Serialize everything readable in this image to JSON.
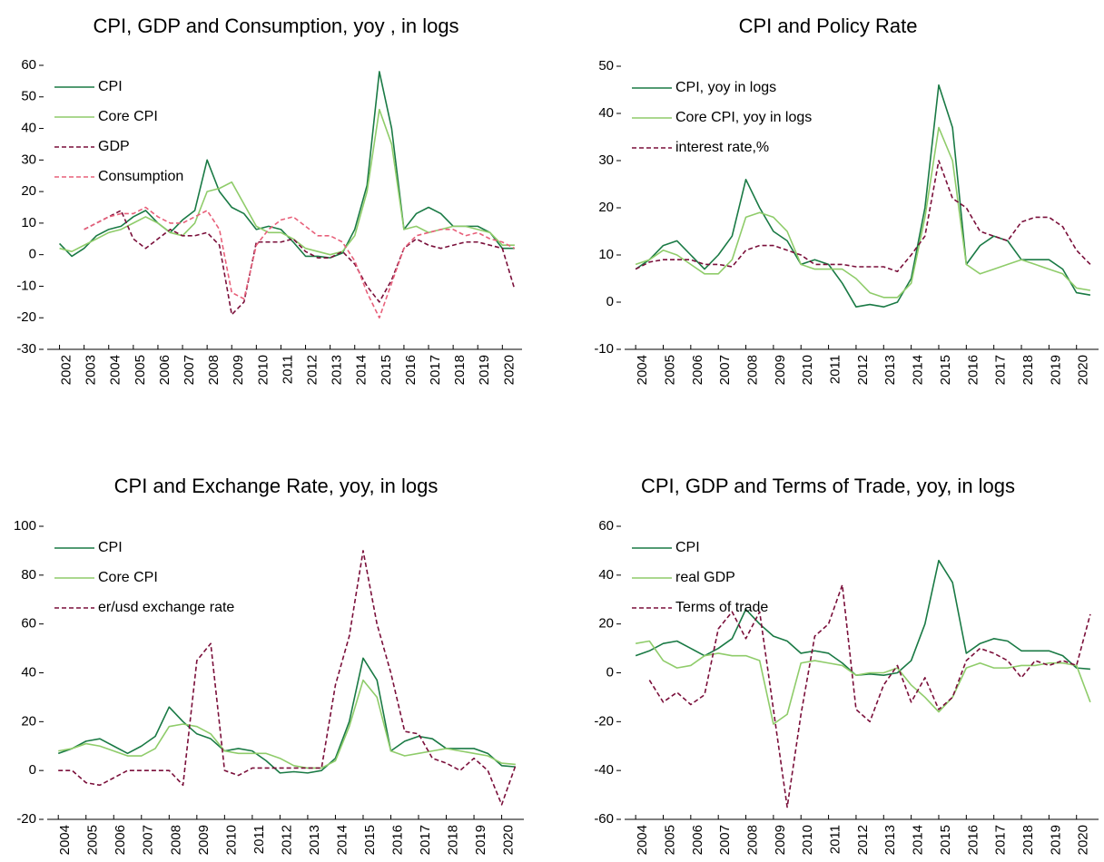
{
  "chart_data": [
    {
      "type": "line",
      "title": "CPI, GDP and Consumption, yoy , in logs",
      "x": [
        2002,
        2002.5,
        2003,
        2003.5,
        2004,
        2004.5,
        2005,
        2005.5,
        2006,
        2006.5,
        2007,
        2007.5,
        2008,
        2008.5,
        2009,
        2009.5,
        2010,
        2010.5,
        2011,
        2011.5,
        2012,
        2012.5,
        2013,
        2013.5,
        2014,
        2014.5,
        2015,
        2015.5,
        2016,
        2016.5,
        2017,
        2017.5,
        2018,
        2018.5,
        2019,
        2019.5,
        2020,
        2020.5
      ],
      "xlim": [
        2001.5,
        2020.8
      ],
      "xticks": [
        2002,
        2003,
        2004,
        2005,
        2006,
        2007,
        2008,
        2009,
        2010,
        2011,
        2012,
        2013,
        2014,
        2015,
        2016,
        2017,
        2018,
        2019,
        2020
      ],
      "ylim": [
        -30,
        60
      ],
      "yticks": [
        -30,
        -20,
        -10,
        0,
        10,
        20,
        30,
        40,
        50,
        60
      ],
      "series": [
        {
          "name": "CPI",
          "color": "#1a7a45",
          "values": [
            3.5,
            -0.5,
            2,
            6,
            8,
            9,
            12,
            14,
            10,
            7,
            11,
            14,
            30,
            20,
            15,
            13,
            8,
            9,
            8,
            4,
            -0.5,
            -0.5,
            -1,
            0.5,
            8,
            22,
            58,
            40,
            8,
            13,
            15,
            13,
            9,
            9,
            9,
            7,
            2,
            2
          ]
        },
        {
          "name": "Core CPI",
          "color": "#8fcc6a",
          "values": [
            2,
            1,
            3,
            5,
            7,
            8,
            10,
            12,
            10,
            7,
            6,
            10,
            20,
            21,
            23,
            16,
            9,
            7,
            7,
            5,
            2,
            1,
            0,
            1,
            6,
            20,
            46,
            35,
            8,
            9,
            7,
            8,
            9,
            9,
            8,
            7,
            3,
            3
          ]
        },
        {
          "name": "GDP",
          "color": "#7a0f3a",
          "dashed": true,
          "values": [
            null,
            null,
            8,
            10,
            12,
            14,
            5,
            2,
            5,
            8,
            6,
            6,
            7,
            3,
            -19,
            -15,
            4,
            4,
            4,
            5,
            1,
            -1,
            -1,
            1,
            -3,
            -10,
            -15,
            -8,
            2,
            5,
            3,
            2,
            3,
            4,
            4,
            3,
            2,
            -11
          ]
        },
        {
          "name": "Consumption",
          "color": "#e8607a",
          "dashed": true,
          "values": [
            null,
            null,
            8,
            10,
            12,
            13,
            13,
            15,
            12,
            10,
            10,
            12,
            14,
            8,
            -12,
            -14,
            3,
            8,
            11,
            12,
            9,
            6,
            6,
            4,
            -2,
            -12,
            -20,
            -9,
            2,
            6,
            7,
            8,
            8,
            6,
            7,
            5,
            4,
            2
          ]
        }
      ]
    },
    {
      "type": "line",
      "title": "CPI and Policy Rate",
      "x": [
        2004,
        2004.5,
        2005,
        2005.5,
        2006,
        2006.5,
        2007,
        2007.5,
        2008,
        2008.5,
        2009,
        2009.5,
        2010,
        2010.5,
        2011,
        2011.5,
        2012,
        2012.5,
        2013,
        2013.5,
        2014,
        2014.5,
        2015,
        2015.5,
        2016,
        2016.5,
        2017,
        2017.5,
        2018,
        2018.5,
        2019,
        2019.5,
        2020,
        2020.5
      ],
      "xlim": [
        2003.6,
        2020.8
      ],
      "xticks": [
        2004,
        2005,
        2006,
        2007,
        2008,
        2009,
        2010,
        2011,
        2012,
        2013,
        2014,
        2015,
        2016,
        2017,
        2018,
        2019,
        2020
      ],
      "ylim": [
        -10,
        50
      ],
      "yticks": [
        -10,
        0,
        10,
        20,
        30,
        40,
        50
      ],
      "series": [
        {
          "name": "CPI, yoy in logs",
          "color": "#1a7a45",
          "values": [
            7,
            9,
            12,
            13,
            10,
            7,
            10,
            14,
            26,
            20,
            15,
            13,
            8,
            9,
            8,
            4,
            -1,
            -0.5,
            -1,
            0,
            5,
            20,
            46,
            37,
            8,
            12,
            14,
            13,
            9,
            9,
            9,
            7,
            2,
            1.5
          ]
        },
        {
          "name": "Core CPI, yoy in logs",
          "color": "#8fcc6a",
          "values": [
            8,
            9,
            11,
            10,
            8,
            6,
            6,
            9,
            18,
            19,
            18,
            15,
            8,
            7,
            7,
            7,
            5,
            2,
            1,
            1,
            4,
            18,
            37,
            30,
            8,
            6,
            7,
            8,
            9,
            8,
            7,
            6,
            3,
            2.5
          ]
        },
        {
          "name": "interest rate,%",
          "color": "#7a0f3a",
          "dashed": true,
          "values": [
            7,
            8.5,
            9,
            9,
            9,
            8,
            8,
            7.5,
            11,
            12,
            12,
            11,
            10,
            8,
            8,
            8,
            7.5,
            7.5,
            7.5,
            6.5,
            10,
            14,
            30,
            22,
            20,
            15,
            14,
            13,
            17,
            18,
            18,
            16,
            11,
            8
          ]
        }
      ]
    },
    {
      "type": "line",
      "title": "CPI and Exchange Rate, yoy, in logs",
      "x": [
        2004,
        2004.5,
        2005,
        2005.5,
        2006,
        2006.5,
        2007,
        2007.5,
        2008,
        2008.5,
        2009,
        2009.5,
        2010,
        2010.5,
        2011,
        2011.5,
        2012,
        2012.5,
        2013,
        2013.5,
        2014,
        2014.5,
        2015,
        2015.5,
        2016,
        2016.5,
        2017,
        2017.5,
        2018,
        2018.5,
        2019,
        2019.5,
        2020,
        2020.5
      ],
      "xlim": [
        2003.6,
        2020.8
      ],
      "xticks": [
        2004,
        2005,
        2006,
        2007,
        2008,
        2009,
        2010,
        2011,
        2012,
        2013,
        2014,
        2015,
        2016,
        2017,
        2018,
        2019,
        2020
      ],
      "ylim": [
        -20,
        100
      ],
      "yticks": [
        -20,
        0,
        20,
        40,
        60,
        80,
        100
      ],
      "series": [
        {
          "name": "CPI",
          "color": "#1a7a45",
          "values": [
            7,
            9,
            12,
            13,
            10,
            7,
            10,
            14,
            26,
            20,
            15,
            13,
            8,
            9,
            8,
            4,
            -1,
            -0.5,
            -1,
            0,
            5,
            20,
            46,
            37,
            8,
            12,
            14,
            13,
            9,
            9,
            9,
            7,
            2,
            1.5
          ]
        },
        {
          "name": "Core CPI",
          "color": "#8fcc6a",
          "values": [
            8,
            9,
            11,
            10,
            8,
            6,
            6,
            9,
            18,
            19,
            18,
            15,
            8,
            7,
            7,
            7,
            5,
            2,
            1,
            1,
            4,
            18,
            37,
            30,
            8,
            6,
            7,
            8,
            9,
            8,
            7,
            6,
            3,
            2.5
          ]
        },
        {
          "name": "er/usd exchange rate",
          "color": "#7a0f3a",
          "dashed": true,
          "values": [
            0,
            0,
            -5,
            -6,
            -3,
            0,
            0,
            0,
            0,
            -6,
            45,
            52,
            0,
            -2,
            1,
            1,
            1,
            1,
            1,
            1,
            35,
            55,
            90,
            60,
            40,
            16,
            15,
            5,
            3,
            0,
            5,
            0,
            -14,
            2
          ]
        }
      ]
    },
    {
      "type": "line",
      "title": "CPI, GDP and Terms of Trade, yoy, in logs",
      "x": [
        2004,
        2004.5,
        2005,
        2005.5,
        2006,
        2006.5,
        2007,
        2007.5,
        2008,
        2008.5,
        2009,
        2009.5,
        2010,
        2010.5,
        2011,
        2011.5,
        2012,
        2012.5,
        2013,
        2013.5,
        2014,
        2014.5,
        2015,
        2015.5,
        2016,
        2016.5,
        2017,
        2017.5,
        2018,
        2018.5,
        2019,
        2019.5,
        2020,
        2020.5
      ],
      "xlim": [
        2003.6,
        2020.8
      ],
      "xticks": [
        2004,
        2005,
        2006,
        2007,
        2008,
        2009,
        2010,
        2011,
        2012,
        2013,
        2014,
        2015,
        2016,
        2017,
        2018,
        2019,
        2020
      ],
      "ylim": [
        -60,
        60
      ],
      "yticks": [
        -60,
        -40,
        -20,
        0,
        20,
        40,
        60
      ],
      "series": [
        {
          "name": "CPI",
          "color": "#1a7a45",
          "values": [
            7,
            9,
            12,
            13,
            10,
            7,
            10,
            14,
            26,
            20,
            15,
            13,
            8,
            9,
            8,
            4,
            -1,
            -0.5,
            -1,
            0,
            5,
            20,
            46,
            37,
            8,
            12,
            14,
            13,
            9,
            9,
            9,
            7,
            2,
            1.5
          ]
        },
        {
          "name": "real GDP",
          "color": "#8fcc6a",
          "values": [
            12,
            13,
            5,
            2,
            3,
            7,
            8,
            7,
            7,
            5,
            -21,
            -17,
            4,
            5,
            4,
            3,
            -1,
            0,
            0,
            2,
            -5,
            -10,
            -16,
            -10,
            2,
            4,
            2,
            2,
            3,
            3,
            4,
            4,
            3,
            -12
          ]
        },
        {
          "name": "Terms of trade",
          "color": "#7a0f3a",
          "dashed": true,
          "values": [
            null,
            -3,
            -12,
            -8,
            -13,
            -9,
            18,
            25,
            14,
            25,
            -15,
            -55,
            -17,
            15,
            20,
            36,
            -15,
            -20,
            -5,
            3,
            -12,
            -2,
            -15,
            -10,
            5,
            10,
            8,
            5,
            -2,
            5,
            3,
            5,
            3,
            24
          ]
        }
      ]
    }
  ]
}
